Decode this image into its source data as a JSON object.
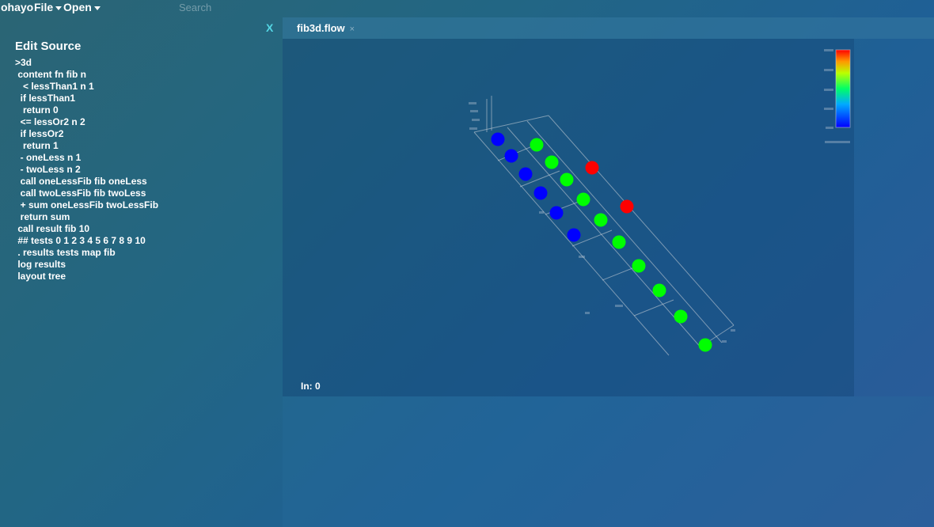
{
  "menubar": {
    "app": "ohayo",
    "file": "File",
    "open": "Open"
  },
  "search": {
    "placeholder": "Search"
  },
  "editor": {
    "close": "X",
    "title": "Edit Source",
    "source": ">3d\n content fn fib n\n   < lessThan1 n 1\n  if lessThan1\n   return 0\n  <= lessOr2 n 2\n  if lessOr2\n   return 1\n  - oneLess n 1\n  - twoLess n 2\n  call oneLessFib fib oneLess\n  call twoLessFib fib twoLess\n  + sum oneLessFib twoLessFib\n  return sum\n call result fib 10\n ## tests 0 1 2 3 4 5 6 7 8 9 10\n . results tests map fib\n log results\n layout tree"
  },
  "tab": {
    "label": "fib3d.flow",
    "close": "×"
  },
  "viz": {
    "status": "In: 0",
    "colors": {
      "low": "#0000ff",
      "mid": "#00ff00",
      "high": "#ff0000"
    },
    "points": [
      {
        "color": "blue"
      },
      {
        "color": "blue"
      },
      {
        "color": "blue"
      },
      {
        "color": "blue"
      },
      {
        "color": "blue"
      },
      {
        "color": "blue"
      },
      {
        "color": "green"
      },
      {
        "color": "green"
      },
      {
        "color": "green"
      },
      {
        "color": "green"
      },
      {
        "color": "green"
      },
      {
        "color": "green"
      },
      {
        "color": "green"
      },
      {
        "color": "green"
      },
      {
        "color": "green"
      },
      {
        "color": "green"
      },
      {
        "color": "red"
      },
      {
        "color": "red"
      }
    ]
  }
}
